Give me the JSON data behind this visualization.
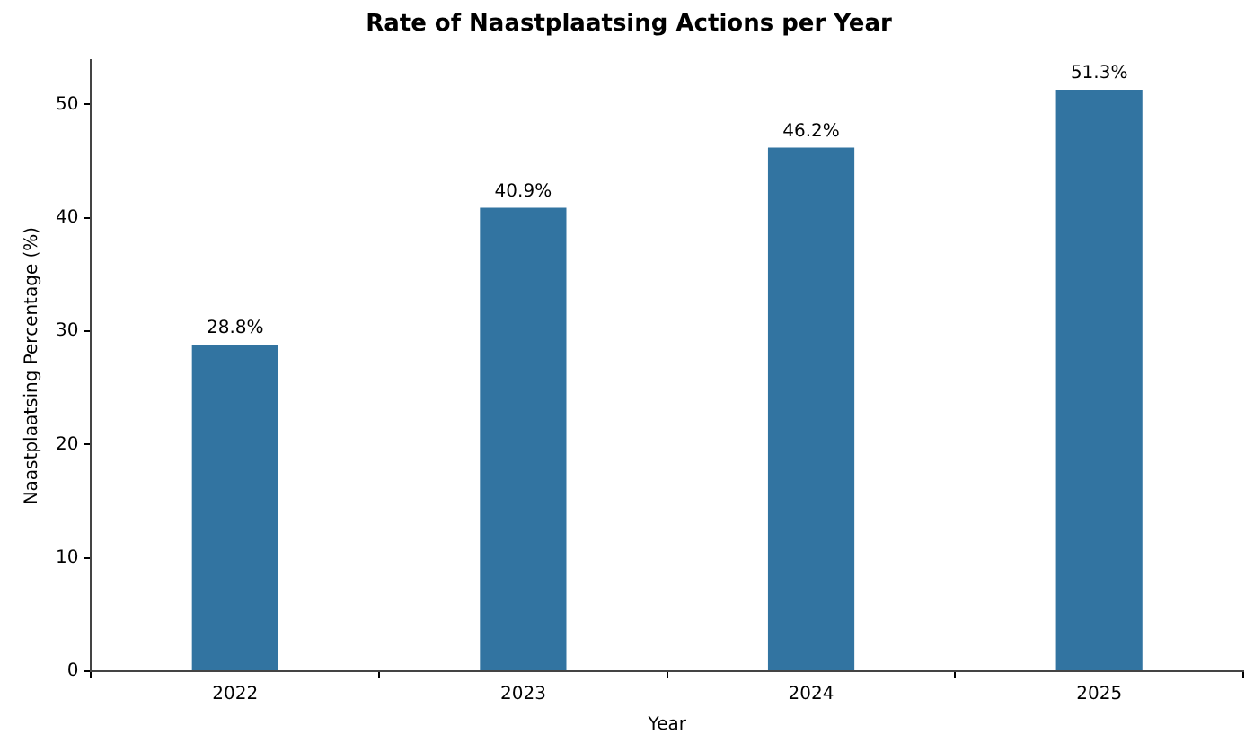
{
  "chart_data": {
    "type": "bar",
    "title": "Rate of Naastplaatsing Actions per Year",
    "xlabel": "Year",
    "ylabel": "Naastplaatsing Percentage (%)",
    "categories": [
      "2022",
      "2023",
      "2024",
      "2025"
    ],
    "values": [
      28.8,
      40.9,
      46.2,
      51.3
    ],
    "value_labels": [
      "28.8%",
      "40.9%",
      "46.2%",
      "51.3%"
    ],
    "color": "#3274a1",
    "ylim": [
      0,
      53.9
    ],
    "yticks": [
      0,
      10,
      20,
      30,
      40,
      50
    ],
    "grid": false,
    "legend": false
  }
}
